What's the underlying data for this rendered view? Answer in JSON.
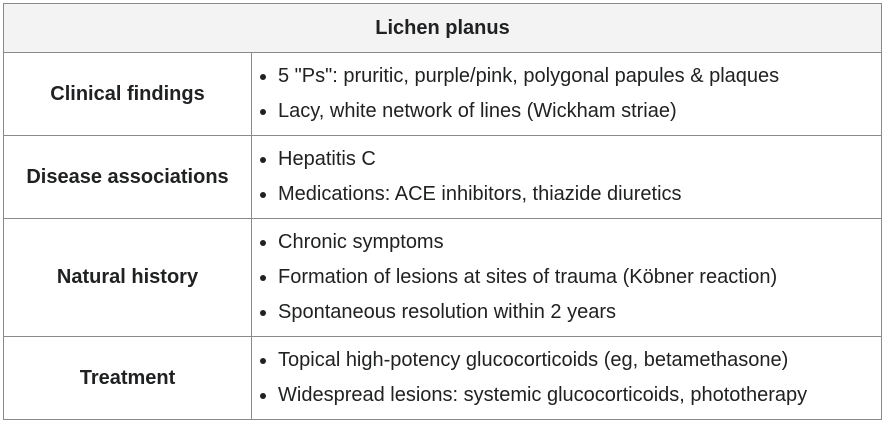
{
  "table": {
    "title": "Lichen planus",
    "rows": [
      {
        "label": "Clinical findings",
        "items": [
          "5 \"Ps\": pruritic, purple/pink, polygonal papules & plaques",
          "Lacy, white network of lines (Wickham striae)"
        ]
      },
      {
        "label": "Disease associations",
        "items": [
          "Hepatitis C",
          "Medications: ACE inhibitors, thiazide diuretics"
        ]
      },
      {
        "label": "Natural history",
        "items": [
          "Chronic symptoms",
          "Formation of lesions at sites of trauma (Köbner reaction)",
          "Spontaneous resolution within 2 years"
        ]
      },
      {
        "label": "Treatment",
        "items": [
          "Topical high-potency glucocorticoids (eg, betamethasone)",
          "Widespread lesions: systemic glucocorticoids, phototherapy"
        ]
      }
    ]
  }
}
